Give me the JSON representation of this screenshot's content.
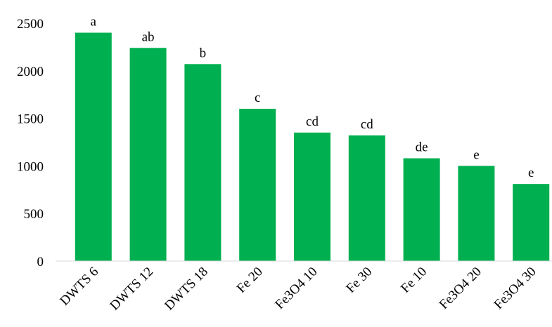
{
  "chart_data": {
    "type": "bar",
    "categories": [
      "DWTS 6",
      "DWTS 12",
      "DWTS 18",
      "Fe 20",
      "Fe3O4 10",
      "Fe 30",
      "Fe 10",
      "Fe3O4 20",
      "Fe3O4 30"
    ],
    "values": [
      2400,
      2240,
      2070,
      1600,
      1350,
      1320,
      1080,
      1000,
      810
    ],
    "annotations": [
      "a",
      "ab",
      "b",
      "c",
      "cd",
      "cd",
      "de",
      "e",
      "e"
    ],
    "color": "#00b050",
    "ylim": [
      0,
      2500
    ],
    "yticks": [
      0,
      500,
      1000,
      1500,
      2000,
      2500
    ],
    "grid": false
  }
}
